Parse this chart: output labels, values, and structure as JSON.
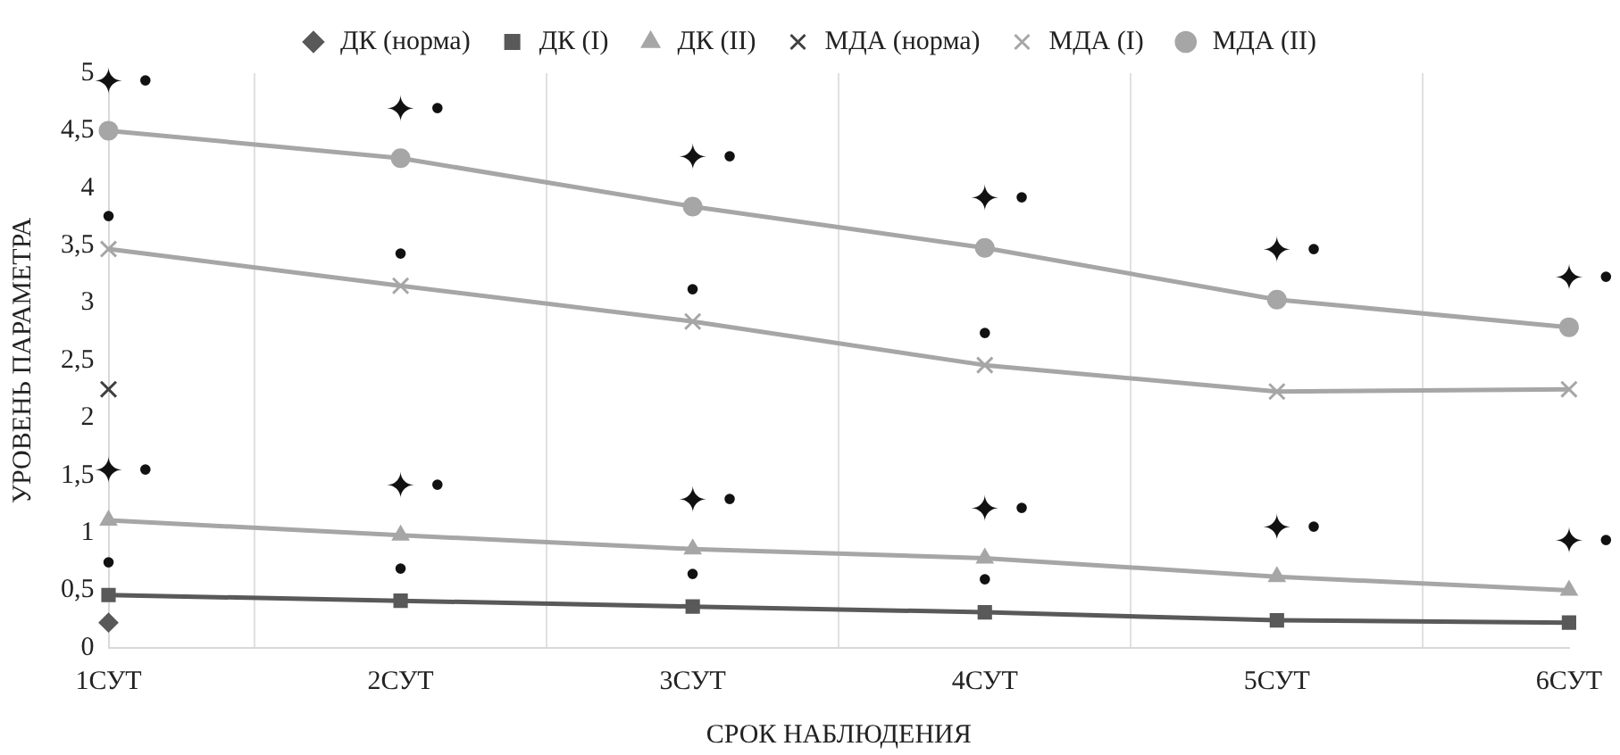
{
  "chart_data": {
    "type": "line",
    "xlabel": "СРОК НАБЛЮДЕНИЯ",
    "ylabel": "УРОВЕНЬ ПАРАМЕТРА",
    "categories": [
      "1СУТ",
      "2СУТ",
      "3СУТ",
      "4СУТ",
      "5СУТ",
      "6СУТ"
    ],
    "series": [
      {
        "name": "ДК (норма)",
        "color": "#595959",
        "marker": "diamond",
        "values": [
          0.22,
          null,
          null,
          null,
          null,
          null
        ]
      },
      {
        "name": "ДК (I)",
        "color": "#595959",
        "marker": "square",
        "values": [
          0.46,
          0.41,
          0.36,
          0.31,
          0.24,
          0.22
        ]
      },
      {
        "name": "ДК (II)",
        "color": "#a6a6a6",
        "marker": "triangle",
        "values": [
          1.11,
          0.98,
          0.86,
          0.78,
          0.62,
          0.5
        ]
      },
      {
        "name": "МДА (норма)",
        "color": "#404040",
        "marker": "cross",
        "values": [
          2.25,
          null,
          null,
          null,
          null,
          null
        ]
      },
      {
        "name": "МДА (I)",
        "color": "#a6a6a6",
        "marker": "cross",
        "values": [
          3.47,
          3.15,
          2.84,
          2.46,
          2.23,
          2.25
        ]
      },
      {
        "name": "МДА (II)",
        "color": "#a6a6a6",
        "marker": "circle",
        "values": [
          4.5,
          4.26,
          3.84,
          3.48,
          3.03,
          2.79
        ]
      }
    ],
    "ylim": [
      0,
      5
    ],
    "yticks": [
      0,
      {
        "value": 0.5,
        "label": "0,5"
      },
      1,
      {
        "value": 1.5,
        "label": "1,5"
      },
      2,
      {
        "value": 2.5,
        "label": "2,5"
      },
      3,
      {
        "value": 3.5,
        "label": "3,5"
      },
      4,
      {
        "value": 4.5,
        "label": "4,5"
      },
      5
    ],
    "grid": "x",
    "legend": "top",
    "line_style": "solid",
    "annotations": [
      {
        "text": "✦ •",
        "x": "1СУТ",
        "y": 4.5
      },
      {
        "text": "✦ •",
        "x": "2СУТ",
        "y": 4.26
      },
      {
        "text": "✦ •",
        "x": "3СУТ",
        "y": 3.84
      },
      {
        "text": "✦ •",
        "x": "4СУТ",
        "y": 3.48
      },
      {
        "text": "✦ •",
        "x": "5СУТ",
        "y": 3.03
      },
      {
        "text": "✦ •",
        "x": "6СУТ",
        "y": 2.79
      },
      {
        "text": "✦ •",
        "x": "1СУТ",
        "y": 1.11
      },
      {
        "text": "✦ •",
        "x": "2СУТ",
        "y": 0.98
      },
      {
        "text": "✦ •",
        "x": "3СУТ",
        "y": 0.86
      },
      {
        "text": "✦ •",
        "x": "4СУТ",
        "y": 0.78
      },
      {
        "text": "✦ •",
        "x": "5СУТ",
        "y": 0.62
      },
      {
        "text": "✦ •",
        "x": "6СУТ",
        "y": 0.5
      },
      {
        "text": "•",
        "x": "1СУТ",
        "y": 3.47
      },
      {
        "text": "•",
        "x": "2СУТ",
        "y": 3.15
      },
      {
        "text": "•",
        "x": "3СУТ",
        "y": 2.84
      },
      {
        "text": "•",
        "x": "4СУТ",
        "y": 2.46
      },
      {
        "text": "•",
        "x": "1СУТ",
        "y": 0.46
      },
      {
        "text": "•",
        "x": "2СУТ",
        "y": 0.41
      },
      {
        "text": "•",
        "x": "3СУТ",
        "y": 0.36
      },
      {
        "text": "•",
        "x": "4СУТ",
        "y": 0.31
      }
    ]
  }
}
